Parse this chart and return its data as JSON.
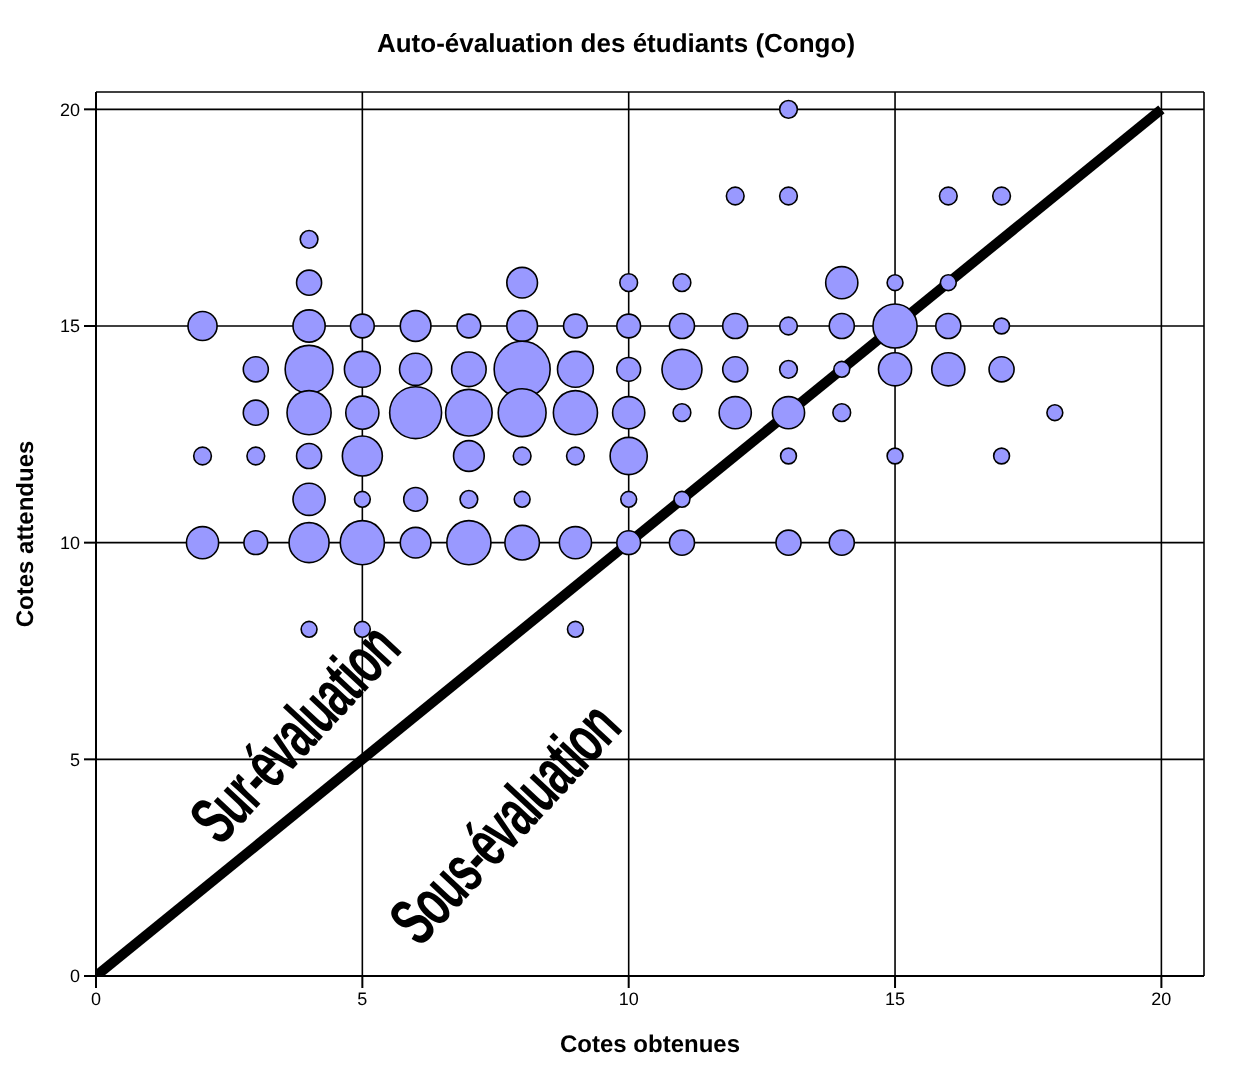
{
  "chart_data": {
    "type": "bubble",
    "title": "Auto-évaluation des étudiants (Congo)",
    "xlabel": "Cotes obtenues",
    "ylabel": "Cotes attendues",
    "xlim": [
      0,
      20.8
    ],
    "ylim": [
      0,
      20.4
    ],
    "xticks": [
      0,
      5,
      10,
      15,
      20
    ],
    "yticks": [
      0,
      5,
      10,
      15,
      20
    ],
    "grid": true,
    "annotations": [
      "Sur-évaluation",
      "Sous-évaluation"
    ],
    "series": [
      {
        "type": "line",
        "color": "#000000",
        "x": [
          0,
          20
        ],
        "values": [
          0,
          20
        ]
      },
      {
        "color": "#9999ff",
        "x": [
          4,
          4,
          8,
          10,
          11,
          14,
          15,
          16,
          2,
          4,
          5,
          6,
          7,
          8,
          9,
          10,
          11,
          12,
          13,
          14,
          15,
          16,
          17,
          3,
          4,
          5,
          6,
          7,
          8,
          9,
          10,
          11,
          12,
          13,
          14,
          15,
          16,
          17,
          3,
          4,
          5,
          6,
          7,
          8,
          9,
          10,
          11,
          12,
          13,
          14,
          18,
          2,
          3,
          4,
          5,
          7,
          8,
          9,
          10,
          13,
          15,
          17,
          4,
          5,
          6,
          7,
          8,
          10,
          11,
          2,
          3,
          4,
          5,
          6,
          7,
          8,
          9,
          10,
          11,
          13,
          14,
          4,
          5,
          9,
          13,
          12,
          13,
          16,
          17
        ],
        "values": [
          17,
          16,
          16,
          16,
          16,
          16,
          16,
          16,
          15,
          15,
          15,
          15,
          15,
          15,
          15,
          15,
          15,
          15,
          15,
          15,
          15,
          15,
          15,
          14,
          14,
          14,
          14,
          14,
          14,
          14,
          14,
          14,
          14,
          14,
          14,
          14,
          14,
          14,
          13,
          13,
          13,
          13,
          13,
          13,
          13,
          13,
          13,
          13,
          13,
          13,
          13,
          12,
          12,
          12,
          12,
          12,
          12,
          12,
          12,
          12,
          12,
          12,
          11,
          11,
          11,
          11,
          11,
          11,
          11,
          10,
          10,
          10,
          10,
          10,
          10,
          10,
          10,
          10,
          10,
          10,
          10,
          8,
          8,
          8,
          20,
          18,
          18,
          18,
          18
        ],
        "sizes": [
          0.1,
          0.2,
          0.3,
          0.1,
          0.1,
          0.33,
          0.08,
          0.08,
          0.27,
          0.33,
          0.18,
          0.3,
          0.18,
          0.3,
          0.18,
          0.18,
          0.2,
          0.2,
          0.1,
          0.2,
          0.62,
          0.2,
          0.08,
          0.2,
          0.73,
          0.41,
          0.33,
          0.38,
          1,
          0.41,
          0.18,
          0.51,
          0.2,
          0.1,
          0.08,
          0.35,
          0.35,
          0.2,
          0.2,
          0.62,
          0.35,
          0.86,
          0.69,
          0.73,
          0.62,
          0.33,
          0.1,
          0.33,
          0.33,
          0.1,
          0.08,
          0.1,
          0.1,
          0.2,
          0.51,
          0.3,
          0.1,
          0.1,
          0.44,
          0.08,
          0.08,
          0.08,
          0.33,
          0.08,
          0.18,
          0.1,
          0.08,
          0.08,
          0.08,
          0.33,
          0.18,
          0.51,
          0.62,
          0.3,
          0.62,
          0.38,
          0.33,
          0.18,
          0.2,
          0.2,
          0.2,
          0.08,
          0.08,
          0.08,
          0.1,
          0.1,
          0.1,
          0.1,
          0.1
        ]
      }
    ]
  }
}
